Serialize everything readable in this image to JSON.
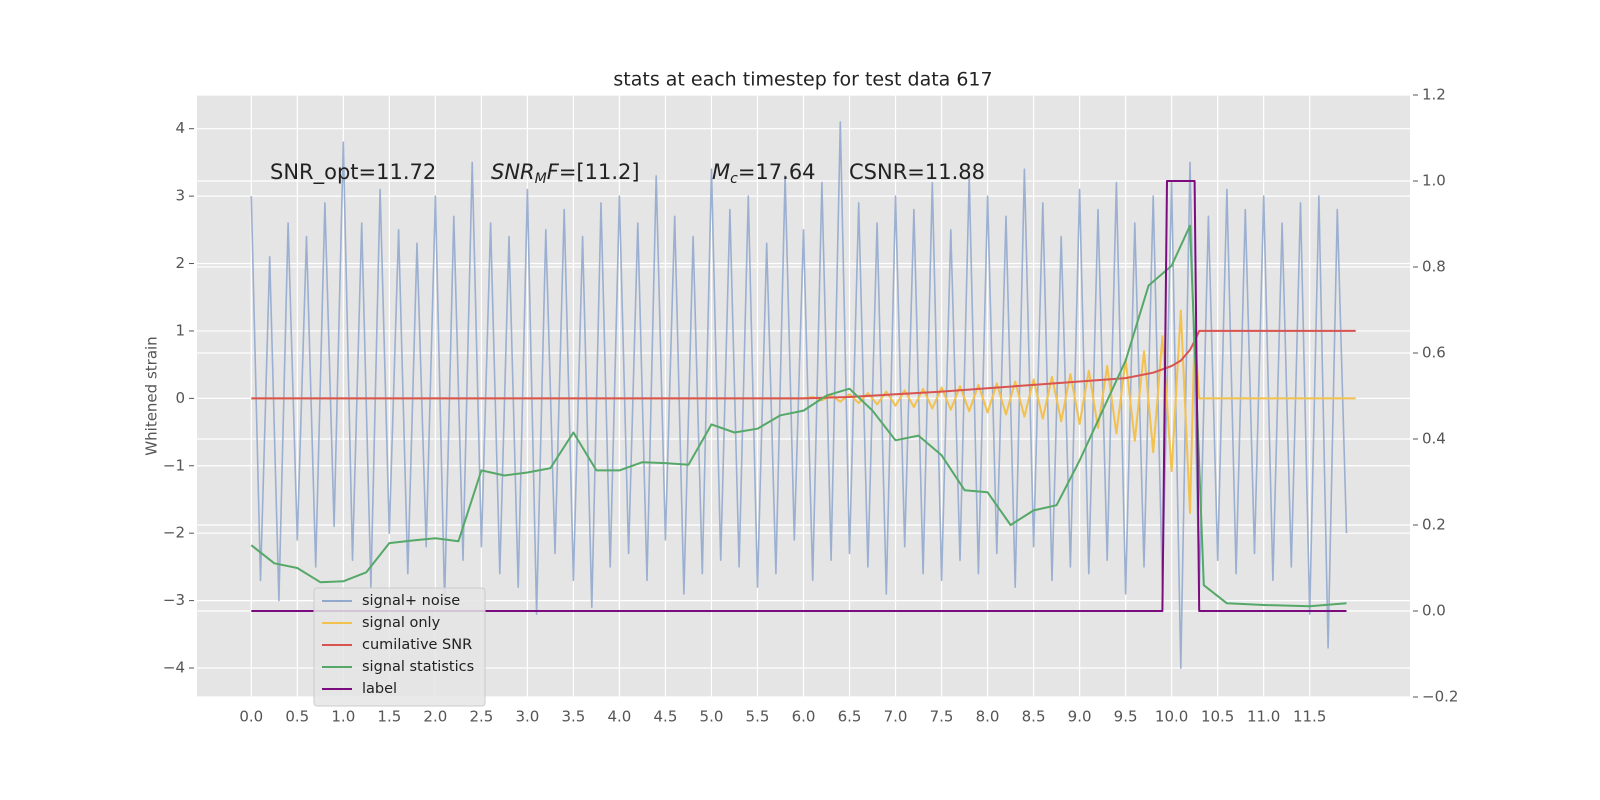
{
  "chart_data": {
    "type": "line",
    "title": "stats at each timestep for test data 617",
    "ylabel": "Whitened strain",
    "xlim": [
      -0.59,
      12.59
    ],
    "ylim": [
      -4.43,
      4.5
    ],
    "y2lim": [
      -0.2,
      1.2
    ],
    "grid": true,
    "legend": "lower left",
    "xticks": [
      {
        "value": 0,
        "label": "0.0"
      },
      {
        "value": 0.5,
        "label": "0.5"
      },
      {
        "value": 1,
        "label": "1.0"
      },
      {
        "value": 1.5,
        "label": "1.5"
      },
      {
        "value": 2,
        "label": "2.0"
      },
      {
        "value": 2.5,
        "label": "2.5"
      },
      {
        "value": 3,
        "label": "3.0"
      },
      {
        "value": 3.5,
        "label": "3.5"
      },
      {
        "value": 4,
        "label": "4.0"
      },
      {
        "value": 4.5,
        "label": "4.5"
      },
      {
        "value": 5,
        "label": "5.0"
      },
      {
        "value": 5.5,
        "label": "5.5"
      },
      {
        "value": 6,
        "label": "6.0"
      },
      {
        "value": 6.5,
        "label": "6.5"
      },
      {
        "value": 7,
        "label": "7.0"
      },
      {
        "value": 7.5,
        "label": "7.5"
      },
      {
        "value": 8,
        "label": "8.0"
      },
      {
        "value": 8.5,
        "label": "8.5"
      },
      {
        "value": 9,
        "label": "9.0"
      },
      {
        "value": 9.5,
        "label": "9.5"
      },
      {
        "value": 10,
        "label": "10.0"
      },
      {
        "value": 10.5,
        "label": "10.5"
      },
      {
        "value": 11,
        "label": "11.0"
      },
      {
        "value": 11.5,
        "label": "11.5"
      }
    ],
    "yticks": [
      {
        "value": -4,
        "label": "−4"
      },
      {
        "value": -3,
        "label": "−3"
      },
      {
        "value": -2,
        "label": "−2"
      },
      {
        "value": -1,
        "label": "−1"
      },
      0,
      1,
      2,
      3,
      4
    ],
    "y2ticks": [
      {
        "value": -0.2,
        "label": "−0.2"
      },
      {
        "value": 0,
        "label": "0.0"
      },
      {
        "value": 0.2,
        "label": "0.2"
      },
      {
        "value": 0.4,
        "label": "0.4"
      },
      {
        "value": 0.6,
        "label": "0.6"
      },
      {
        "value": 0.8,
        "label": "0.8"
      },
      {
        "value": 1,
        "label": "1.0"
      },
      {
        "value": 1.2,
        "label": "1.2"
      }
    ],
    "annotations": [
      [
        {
          "text": "SNR_opt=11.72",
          "style": "normal"
        }
      ],
      [
        {
          "text": "SNR",
          "style": "italic"
        },
        {
          "text": "M",
          "style": "sub"
        },
        {
          "text": "F",
          "style": "italic"
        },
        {
          "text": "=[11.2]",
          "style": "normal"
        }
      ],
      [
        {
          "text": "M",
          "style": "italic"
        },
        {
          "text": "c",
          "style": "sub"
        },
        {
          "text": "=17.64",
          "style": "normal"
        }
      ],
      [
        {
          "text": "CSNR=11.88",
          "style": "normal"
        }
      ]
    ],
    "series": [
      {
        "name": "signal+ noise",
        "color": "#92a8cd",
        "axis": "y",
        "x": [
          0,
          0.1,
          0.2,
          0.3,
          0.4,
          0.5,
          0.6,
          0.7,
          0.8,
          0.9,
          1,
          1.1,
          1.2,
          1.3,
          1.4,
          1.5,
          1.6,
          1.7,
          1.8,
          1.9,
          2,
          2.1,
          2.2,
          2.3,
          2.4,
          2.5,
          2.6,
          2.7,
          2.8,
          2.9,
          3,
          3.1,
          3.2,
          3.3,
          3.4,
          3.5,
          3.6,
          3.7,
          3.8,
          3.9,
          4,
          4.1,
          4.2,
          4.3,
          4.4,
          4.5,
          4.6,
          4.7,
          4.8,
          4.9,
          5,
          5.1,
          5.2,
          5.3,
          5.4,
          5.5,
          5.6,
          5.7,
          5.8,
          5.9,
          6,
          6.1,
          6.2,
          6.3,
          6.4,
          6.5,
          6.6,
          6.7,
          6.8,
          6.9,
          7,
          7.1,
          7.2,
          7.3,
          7.4,
          7.5,
          7.6,
          7.7,
          7.8,
          7.9,
          8,
          8.1,
          8.2,
          8.3,
          8.4,
          8.5,
          8.6,
          8.7,
          8.8,
          8.9,
          9,
          9.1,
          9.2,
          9.3,
          9.4,
          9.5,
          9.6,
          9.7,
          9.8,
          9.9,
          10,
          10.1,
          10.2,
          10.3,
          10.4,
          10.5,
          10.6,
          10.7,
          10.8,
          10.9,
          11,
          11.1,
          11.2,
          11.3,
          11.4,
          11.5,
          11.6,
          11.7,
          11.8,
          11.9
        ],
        "values": [
          3.0,
          -2.7,
          2.1,
          -3.0,
          2.6,
          -2.1,
          2.4,
          -2.5,
          2.9,
          -1.9,
          3.8,
          -2.4,
          2.6,
          -2.8,
          3.1,
          -2.0,
          2.5,
          -2.6,
          2.3,
          -2.2,
          3.0,
          -3.0,
          2.7,
          -2.4,
          3.5,
          -2.2,
          2.6,
          -2.6,
          2.4,
          -2.8,
          3.1,
          -3.2,
          2.5,
          -2.3,
          2.8,
          -2.7,
          2.4,
          -3.1,
          2.9,
          -2.5,
          3.0,
          -2.3,
          2.6,
          -2.7,
          3.3,
          -2.1,
          2.7,
          -2.9,
          2.4,
          -2.6,
          3.4,
          -2.4,
          2.8,
          -2.5,
          3.0,
          -2.8,
          2.3,
          -2.6,
          3.3,
          -2.1,
          2.5,
          -2.7,
          3.2,
          -2.4,
          4.1,
          -2.3,
          2.9,
          -2.5,
          2.6,
          -2.9,
          3.0,
          -2.2,
          2.8,
          -2.6,
          3.2,
          -2.7,
          2.5,
          -2.4,
          3.3,
          -2.6,
          3.0,
          -2.3,
          2.7,
          -2.8,
          3.4,
          -2.2,
          2.9,
          -2.7,
          2.4,
          -2.5,
          3.1,
          -2.6,
          2.8,
          -2.4,
          3.2,
          -2.9,
          2.6,
          -2.5,
          3.0,
          -2.8,
          3.2,
          -4.0,
          3.5,
          -2.9,
          2.7,
          -2.4,
          3.1,
          -2.6,
          2.8,
          -2.3,
          3.0,
          -2.7,
          2.6,
          -2.5,
          2.9,
          -3.2,
          3.0,
          -3.7,
          2.8,
          -2.0
        ]
      },
      {
        "name": "signal only",
        "color": "#f2c14e",
        "axis": "y",
        "x": [
          0,
          6.0,
          6.1,
          6.2,
          6.3,
          6.4,
          6.5,
          6.6,
          6.7,
          6.8,
          6.9,
          7.0,
          7.1,
          7.2,
          7.3,
          7.4,
          7.5,
          7.6,
          7.7,
          7.8,
          7.9,
          8.0,
          8.1,
          8.2,
          8.3,
          8.4,
          8.5,
          8.6,
          8.7,
          8.8,
          8.9,
          9.0,
          9.1,
          9.2,
          9.3,
          9.4,
          9.5,
          9.6,
          9.7,
          9.8,
          9.9,
          10.0,
          10.1,
          10.2,
          10.25,
          10.3,
          12.0
        ],
        "values": [
          0,
          0,
          0.02,
          -0.03,
          0.04,
          -0.05,
          0.06,
          -0.07,
          0.08,
          -0.09,
          0.1,
          -0.11,
          0.12,
          -0.13,
          0.14,
          -0.15,
          0.16,
          -0.17,
          0.18,
          -0.19,
          0.2,
          -0.21,
          0.22,
          -0.24,
          0.25,
          -0.27,
          0.28,
          -0.3,
          0.32,
          -0.34,
          0.36,
          -0.38,
          0.41,
          -0.44,
          0.48,
          -0.52,
          0.57,
          -0.63,
          0.7,
          -0.8,
          0.92,
          -1.08,
          1.3,
          -1.7,
          1.0,
          0,
          0
        ]
      },
      {
        "name": "cumilative SNR",
        "color": "#d9534f",
        "axis": "y",
        "x": [
          0,
          6.0,
          6.5,
          7.0,
          7.5,
          8.0,
          8.5,
          9.0,
          9.5,
          9.8,
          10.0,
          10.1,
          10.2,
          10.25,
          10.3,
          12.0
        ],
        "values": [
          0,
          0,
          0.02,
          0.06,
          0.1,
          0.15,
          0.2,
          0.25,
          0.3,
          0.38,
          0.48,
          0.56,
          0.72,
          0.85,
          1.0,
          1.0
        ]
      },
      {
        "name": "signal statistics",
        "color": "#55a868",
        "axis": "y2",
        "x": [
          0,
          0.25,
          0.5,
          0.75,
          1.0,
          1.25,
          1.5,
          1.75,
          2.0,
          2.25,
          2.5,
          2.75,
          3.0,
          3.25,
          3.5,
          3.75,
          4.0,
          4.25,
          4.5,
          4.75,
          5.0,
          5.25,
          5.5,
          5.75,
          6.0,
          6.25,
          6.5,
          6.75,
          7.0,
          7.25,
          7.5,
          7.75,
          8.0,
          8.25,
          8.5,
          8.75,
          9.0,
          9.25,
          9.5,
          9.75,
          10.0,
          10.2,
          10.35,
          10.6,
          11.0,
          11.5,
          11.9
        ],
        "values": [
          0.153,
          0.111,
          0.1,
          0.067,
          0.069,
          0.09,
          0.158,
          0.164,
          0.169,
          0.162,
          0.327,
          0.315,
          0.322,
          0.332,
          0.415,
          0.327,
          0.327,
          0.346,
          0.344,
          0.34,
          0.434,
          0.415,
          0.424,
          0.455,
          0.466,
          0.501,
          0.517,
          0.466,
          0.397,
          0.408,
          0.362,
          0.281,
          0.276,
          0.2,
          0.234,
          0.246,
          0.35,
          0.466,
          0.582,
          0.757,
          0.803,
          0.896,
          0.06,
          0.018,
          0.014,
          0.011,
          0.018
        ]
      },
      {
        "name": "label",
        "color": "#7b0c7e",
        "axis": "y2",
        "x": [
          0,
          9.9,
          9.95,
          10.25,
          10.3,
          11.9
        ],
        "values": [
          0,
          0,
          1,
          1,
          0,
          0
        ]
      }
    ]
  }
}
